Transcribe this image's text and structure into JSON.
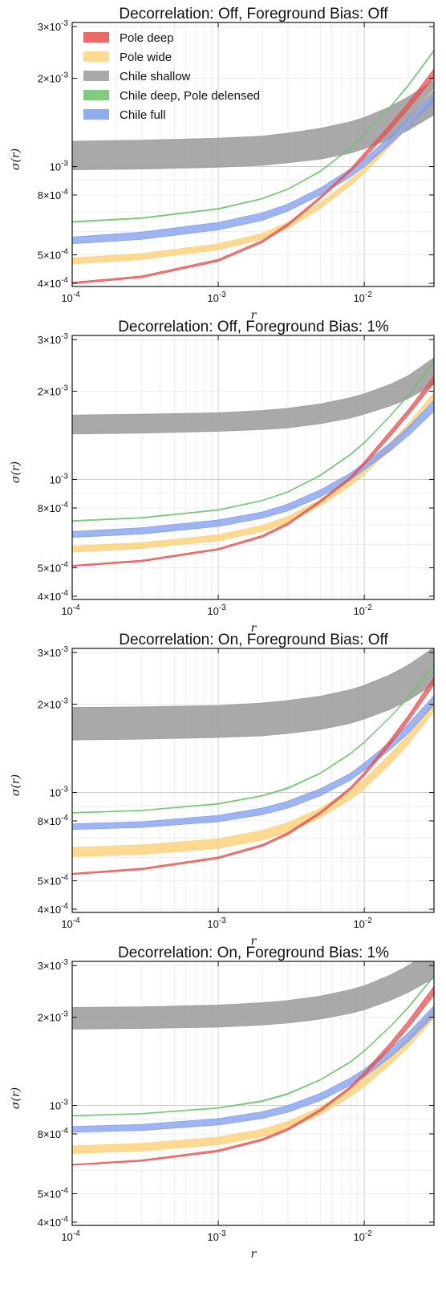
{
  "chart_data": [
    {
      "type": "area",
      "title": "Decorrelation: Off, Foreground Bias: Off",
      "xlabel": "r",
      "ylabel": "σ(r)",
      "xscale": "log",
      "yscale": "log",
      "xlim": [
        0.0001,
        0.03
      ],
      "ylim": [
        0.00039,
        0.0031
      ],
      "xticks": [
        {
          "label": "10",
          "exp": "-4"
        },
        {
          "label": "10",
          "exp": "-3"
        },
        {
          "label": "10",
          "exp": "-2"
        }
      ],
      "yticks": [
        {
          "value": 0.003,
          "label": "3×10",
          "exp": "-3"
        },
        {
          "value": 0.002,
          "label": "2×10",
          "exp": "-3"
        },
        {
          "value": 0.001,
          "label": "10",
          "exp": "-3"
        },
        {
          "value": 0.0008,
          "label": "8×10",
          "exp": "-4"
        },
        {
          "value": 0.0005,
          "label": "5×10",
          "exp": "-4"
        },
        {
          "value": 0.0004,
          "label": "4×10",
          "exp": "-4"
        }
      ],
      "grid": true,
      "legend": "top-left",
      "x": [
        0.0001,
        0.0003,
        0.001,
        0.002,
        0.003,
        0.005,
        0.008,
        0.01,
        0.015,
        0.02,
        0.03
      ],
      "series": [
        {
          "name": "Pole deep",
          "color": "#e8504f",
          "lower": [
            0.000398,
            0.000418,
            0.000475,
            0.00055,
            0.000628,
            0.000775,
            0.00096,
            0.00107,
            0.00133,
            0.00157,
            0.00201
          ],
          "upper": [
            0.000403,
            0.000424,
            0.000483,
            0.00056,
            0.00064,
            0.00079,
            0.00098,
            0.00111,
            0.00139,
            0.00165,
            0.00215
          ]
        },
        {
          "name": "Pole wide",
          "color": "#fdd27f",
          "lower": [
            0.000465,
            0.000482,
            0.00052,
            0.000565,
            0.000615,
            0.00072,
            0.00086,
            0.00095,
            0.00117,
            0.00137,
            0.00175
          ],
          "upper": [
            0.000488,
            0.000505,
            0.000545,
            0.000592,
            0.000645,
            0.000755,
            0.0009,
            0.000995,
            0.00123,
            0.00144,
            0.00184
          ]
        },
        {
          "name": "Chile shallow",
          "color": "#9a9a9a",
          "lower": [
            0.000975,
            0.00098,
            0.000995,
            0.00101,
            0.00103,
            0.00106,
            0.00111,
            0.00115,
            0.00124,
            0.00133,
            0.0015
          ],
          "upper": [
            0.00122,
            0.00123,
            0.00125,
            0.00127,
            0.0013,
            0.00135,
            0.00142,
            0.00147,
            0.0016,
            0.00173,
            0.00197
          ]
        },
        {
          "name": "Chile deep, Pole delensed",
          "color": "#6bc36b",
          "lower": [
            0.000645,
            0.000665,
            0.000715,
            0.000775,
            0.000835,
            0.00096,
            0.00115,
            0.00128,
            0.00159,
            0.00188,
            0.00247
          ],
          "upper": [
            0.00065,
            0.00067,
            0.00072,
            0.00078,
            0.00084,
            0.000967,
            0.00116,
            0.00129,
            0.0016,
            0.0019,
            0.0025
          ]
        },
        {
          "name": "Chile full",
          "color": "#7e9cec",
          "lower": [
            0.000545,
            0.000565,
            0.000608,
            0.000655,
            0.000705,
            0.0008,
            0.00092,
            0.001,
            0.00119,
            0.00136,
            0.00167
          ],
          "upper": [
            0.000575,
            0.000598,
            0.000645,
            0.000695,
            0.000745,
            0.000845,
            0.00098,
            0.00106,
            0.00127,
            0.00146,
            0.00181
          ]
        }
      ]
    },
    {
      "type": "area",
      "title": "Decorrelation: Off, Foreground Bias: 1%",
      "xlabel": "r",
      "ylabel": "σ(r)",
      "xscale": "log",
      "yscale": "log",
      "xlim": [
        0.0001,
        0.03
      ],
      "ylim": [
        0.00039,
        0.0031
      ],
      "xticks": [
        {
          "label": "10",
          "exp": "-4"
        },
        {
          "label": "10",
          "exp": "-3"
        },
        {
          "label": "10",
          "exp": "-2"
        }
      ],
      "yticks": [
        {
          "value": 0.003,
          "label": "3×10",
          "exp": "-3"
        },
        {
          "value": 0.002,
          "label": "2×10",
          "exp": "-3"
        },
        {
          "value": 0.001,
          "label": "10",
          "exp": "-3"
        },
        {
          "value": 0.0008,
          "label": "8×10",
          "exp": "-4"
        },
        {
          "value": 0.0005,
          "label": "5×10",
          "exp": "-4"
        },
        {
          "value": 0.0004,
          "label": "4×10",
          "exp": "-4"
        }
      ],
      "grid": true,
      "x": [
        0.0001,
        0.0003,
        0.001,
        0.002,
        0.003,
        0.005,
        0.008,
        0.01,
        0.015,
        0.02,
        0.03
      ],
      "series": [
        {
          "name": "Pole deep",
          "color": "#e8504f",
          "lower": [
            0.000505,
            0.000525,
            0.000575,
            0.000635,
            0.0007,
            0.000835,
            0.001,
            0.00112,
            0.0014,
            0.00166,
            0.00213
          ],
          "upper": [
            0.00051,
            0.000531,
            0.000582,
            0.000645,
            0.000712,
            0.00085,
            0.00102,
            0.00115,
            0.00146,
            0.00173,
            0.00225
          ]
        },
        {
          "name": "Pole wide",
          "color": "#fdd27f",
          "lower": [
            0.000565,
            0.000582,
            0.000618,
            0.000665,
            0.000712,
            0.000815,
            0.00095,
            0.00104,
            0.00127,
            0.00147,
            0.00188
          ],
          "upper": [
            0.000593,
            0.00061,
            0.000648,
            0.000698,
            0.000748,
            0.000855,
            0.000995,
            0.00109,
            0.00133,
            0.00155,
            0.00198
          ]
        },
        {
          "name": "Chile shallow",
          "color": "#9a9a9a",
          "lower": [
            0.00143,
            0.00144,
            0.00146,
            0.00148,
            0.0015,
            0.00155,
            0.00162,
            0.00167,
            0.00178,
            0.00189,
            0.00211
          ],
          "upper": [
            0.00166,
            0.00167,
            0.00169,
            0.00172,
            0.00175,
            0.00181,
            0.0019,
            0.00196,
            0.00211,
            0.00226,
            0.0026
          ]
        },
        {
          "name": "Chile deep, Pole delensed",
          "color": "#6bc36b",
          "lower": [
            0.00072,
            0.000738,
            0.000785,
            0.000845,
            0.000905,
            0.00103,
            0.00121,
            0.00133,
            0.00164,
            0.00193,
            0.00251
          ],
          "upper": [
            0.000725,
            0.000743,
            0.00079,
            0.00085,
            0.00091,
            0.001037,
            0.00122,
            0.00134,
            0.00165,
            0.00195,
            0.00254
          ]
        },
        {
          "name": "Chile full",
          "color": "#7e9cec",
          "lower": [
            0.000635,
            0.000652,
            0.000692,
            0.000738,
            0.000782,
            0.000872,
            0.000995,
            0.00108,
            0.00125,
            0.00141,
            0.00171
          ],
          "upper": [
            0.000665,
            0.000685,
            0.000728,
            0.000775,
            0.000825,
            0.000922,
            0.00105,
            0.00114,
            0.00133,
            0.00151,
            0.00186
          ]
        }
      ]
    },
    {
      "type": "area",
      "title": "Decorrelation: On, Foreground Bias: Off",
      "xlabel": "r",
      "ylabel": "σ(r)",
      "xscale": "log",
      "yscale": "log",
      "xlim": [
        0.0001,
        0.03
      ],
      "ylim": [
        0.00039,
        0.0031
      ],
      "xticks": [
        {
          "label": "10",
          "exp": "-4"
        },
        {
          "label": "10",
          "exp": "-3"
        },
        {
          "label": "10",
          "exp": "-2"
        }
      ],
      "yticks": [
        {
          "value": 0.003,
          "label": "3×10",
          "exp": "-3"
        },
        {
          "value": 0.002,
          "label": "2×10",
          "exp": "-3"
        },
        {
          "value": 0.001,
          "label": "10",
          "exp": "-3"
        },
        {
          "value": 0.0008,
          "label": "8×10",
          "exp": "-4"
        },
        {
          "value": 0.0005,
          "label": "5×10",
          "exp": "-4"
        },
        {
          "value": 0.0004,
          "label": "4×10",
          "exp": "-4"
        }
      ],
      "grid": true,
      "x": [
        0.0001,
        0.0003,
        0.001,
        0.002,
        0.003,
        0.005,
        0.008,
        0.01,
        0.015,
        0.02,
        0.03
      ],
      "series": [
        {
          "name": "Pole deep",
          "color": "#e8504f",
          "lower": [
            0.000525,
            0.000545,
            0.000595,
            0.000655,
            0.000718,
            0.000845,
            0.00102,
            0.00114,
            0.00145,
            0.00175,
            0.00233
          ],
          "upper": [
            0.00053,
            0.000552,
            0.000603,
            0.000665,
            0.00073,
            0.00086,
            0.00104,
            0.00117,
            0.00151,
            0.00183,
            0.00247
          ]
        },
        {
          "name": "Pole wide",
          "color": "#fdd27f",
          "lower": [
            0.000605,
            0.000615,
            0.000645,
            0.000688,
            0.00073,
            0.00082,
            0.000945,
            0.00103,
            0.00125,
            0.00146,
            0.00189
          ],
          "upper": [
            0.00065,
            0.000663,
            0.000695,
            0.000742,
            0.000788,
            0.000885,
            0.00102,
            0.00111,
            0.00135,
            0.00157,
            0.00204
          ]
        },
        {
          "name": "Chile shallow",
          "color": "#9a9a9a",
          "lower": [
            0.00151,
            0.00152,
            0.00154,
            0.00156,
            0.00159,
            0.00164,
            0.00172,
            0.00178,
            0.00192,
            0.00206,
            0.00235
          ],
          "upper": [
            0.00195,
            0.00196,
            0.00198,
            0.00202,
            0.00206,
            0.00213,
            0.00224,
            0.00232,
            0.00252,
            0.00272,
            0.00312
          ]
        },
        {
          "name": "Chile deep, Pole delensed",
          "color": "#6bc36b",
          "lower": [
            0.00085,
            0.000866,
            0.000912,
            0.000972,
            0.00103,
            0.00116,
            0.00135,
            0.00148,
            0.0018,
            0.0021,
            0.00272
          ],
          "upper": [
            0.000855,
            0.000871,
            0.000918,
            0.000978,
            0.00104,
            0.001167,
            0.00136,
            0.00149,
            0.00181,
            0.00212,
            0.00275
          ]
        },
        {
          "name": "Chile full",
          "color": "#7e9cec",
          "lower": [
            0.000748,
            0.00076,
            0.000795,
            0.00084,
            0.000885,
            0.000975,
            0.0011,
            0.00119,
            0.0014,
            0.00159,
            0.00199
          ],
          "upper": [
            0.000782,
            0.000795,
            0.000835,
            0.000885,
            0.000935,
            0.00103,
            0.00116,
            0.00126,
            0.00149,
            0.00171,
            0.00214
          ]
        }
      ]
    },
    {
      "type": "area",
      "title": "Decorrelation: On, Foreground Bias: 1%",
      "xlabel": "r",
      "ylabel": "σ(r)",
      "xscale": "log",
      "yscale": "log",
      "xlim": [
        0.0001,
        0.03
      ],
      "ylim": [
        0.00039,
        0.0031
      ],
      "xticks": [
        {
          "label": "10",
          "exp": "-4"
        },
        {
          "label": "10",
          "exp": "-3"
        },
        {
          "label": "10",
          "exp": "-2"
        }
      ],
      "yticks": [
        {
          "value": 0.003,
          "label": "3×10",
          "exp": "-3"
        },
        {
          "value": 0.002,
          "label": "2×10",
          "exp": "-3"
        },
        {
          "value": 0.001,
          "label": "10",
          "exp": "-3"
        },
        {
          "value": 0.0008,
          "label": "8×10",
          "exp": "-4"
        },
        {
          "value": 0.0005,
          "label": "5×10",
          "exp": "-4"
        },
        {
          "value": 0.0004,
          "label": "4×10",
          "exp": "-4"
        }
      ],
      "grid": true,
      "x": [
        0.0001,
        0.0003,
        0.001,
        0.002,
        0.003,
        0.005,
        0.008,
        0.01,
        0.015,
        0.02,
        0.03
      ],
      "series": [
        {
          "name": "Pole deep",
          "color": "#e8504f",
          "lower": [
            0.000625,
            0.000645,
            0.000695,
            0.000758,
            0.000822,
            0.000955,
            0.00114,
            0.00126,
            0.00156,
            0.00184,
            0.00238
          ],
          "upper": [
            0.00063,
            0.000652,
            0.000705,
            0.00077,
            0.000836,
            0.000972,
            0.00116,
            0.0013,
            0.00163,
            0.00194,
            0.00255
          ]
        },
        {
          "name": "Pole wide",
          "color": "#fdd27f",
          "lower": [
            0.000685,
            0.0007,
            0.000735,
            0.000782,
            0.00083,
            0.00093,
            0.00107,
            0.00116,
            0.00138,
            0.00158,
            0.00198
          ],
          "upper": [
            0.000728,
            0.000743,
            0.00078,
            0.00083,
            0.000882,
            0.000988,
            0.00114,
            0.00124,
            0.00148,
            0.0017,
            0.00214
          ]
        },
        {
          "name": "Chile shallow",
          "color": "#9a9a9a",
          "lower": [
            0.00182,
            0.00183,
            0.00185,
            0.00188,
            0.00191,
            0.00197,
            0.00206,
            0.00212,
            0.00228,
            0.00243,
            0.00272
          ],
          "upper": [
            0.00216,
            0.00217,
            0.0022,
            0.00224,
            0.00228,
            0.00236,
            0.00248,
            0.00256,
            0.00278,
            0.003,
            0.00341
          ]
        },
        {
          "name": "Chile deep, Pole delensed",
          "color": "#6bc36b",
          "lower": [
            0.00092,
            0.000935,
            0.000978,
            0.00103,
            0.00109,
            0.00122,
            0.0014,
            0.00153,
            0.00185,
            0.00215,
            0.00275
          ],
          "upper": [
            0.000925,
            0.00094,
            0.000983,
            0.00104,
            0.0011,
            0.001227,
            0.00141,
            0.00154,
            0.00186,
            0.00217,
            0.00278
          ]
        },
        {
          "name": "Chile full",
          "color": "#7e9cec",
          "lower": [
            0.00081,
            0.000822,
            0.000858,
            0.000903,
            0.000948,
            0.00104,
            0.00117,
            0.00125,
            0.00146,
            0.00165,
            0.00202
          ],
          "upper": [
            0.000848,
            0.000862,
            0.000902,
            0.000952,
            0.001,
            0.0011,
            0.00124,
            0.00133,
            0.00156,
            0.00177,
            0.00219
          ]
        }
      ]
    }
  ]
}
